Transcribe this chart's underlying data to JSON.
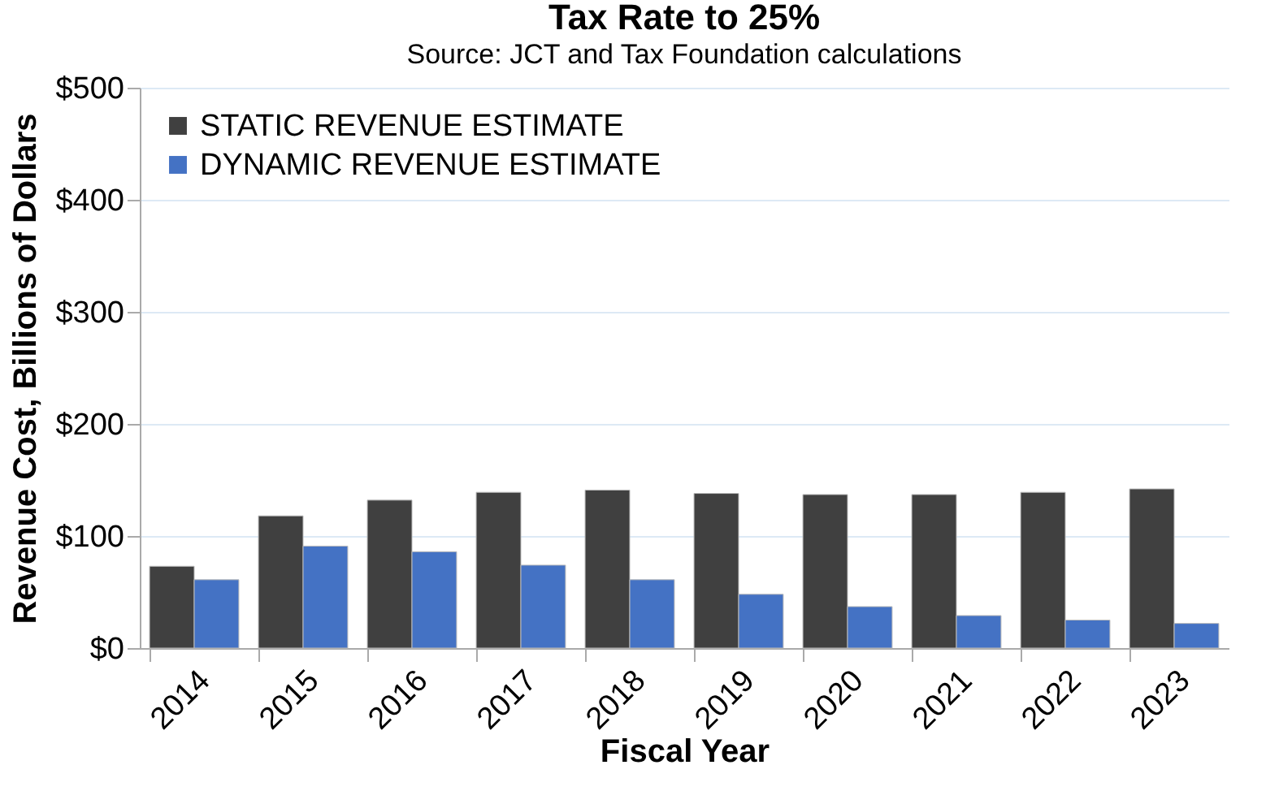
{
  "chart_data": {
    "type": "bar",
    "title": "Tax Rate to 25%",
    "annotations": [
      "Source: JCT and Tax Foundation calculations"
    ],
    "xlabel": "Fiscal Year",
    "ylabel": "Revenue Cost, Billions of Dollars",
    "categories": [
      "2014",
      "2015",
      "2016",
      "2017",
      "2018",
      "2019",
      "2020",
      "2021",
      "2022",
      "2023"
    ],
    "series": [
      {
        "name": "STATIC REVENUE ESTIMATE",
        "color": "#404040",
        "values": [
          73,
          118,
          132,
          139,
          141,
          138,
          137,
          137,
          139,
          142
        ]
      },
      {
        "name": "DYNAMIC REVENUE ESTIMATE",
        "color": "#4472c4",
        "values": [
          61,
          91,
          86,
          74,
          61,
          48,
          37,
          29,
          25,
          22
        ]
      }
    ],
    "ylim": [
      0,
      500
    ],
    "yticks": [
      {
        "value": 0,
        "label": "$0"
      },
      {
        "value": 100,
        "label": "$100"
      },
      {
        "value": 200,
        "label": "$200"
      },
      {
        "value": 300,
        "label": "$300"
      },
      {
        "value": 400,
        "label": "$400"
      },
      {
        "value": 500,
        "label": "$500"
      }
    ],
    "grid": "y",
    "legend": "top left"
  }
}
